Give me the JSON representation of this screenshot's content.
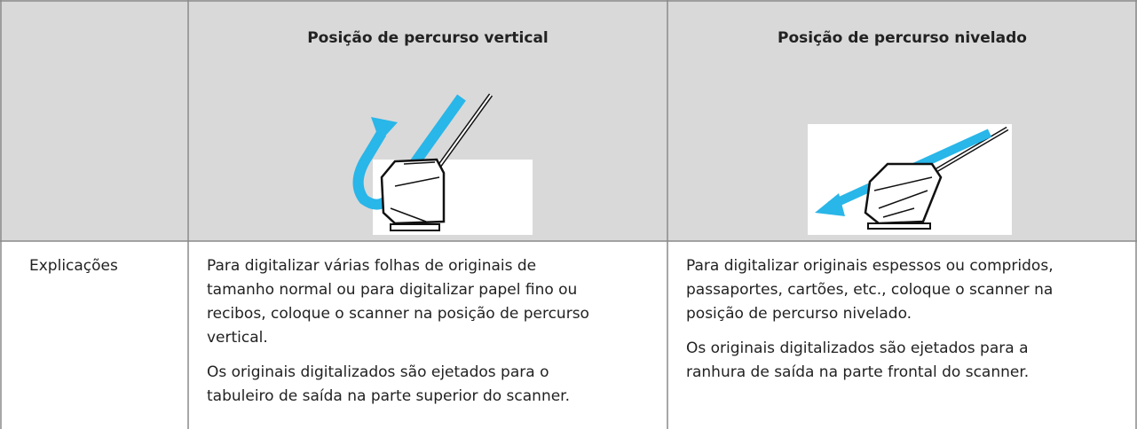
{
  "table": {
    "columns": [
      "Posição de percurso vertical",
      "Posição de percurso nivelado"
    ],
    "rows": [
      {
        "label": "Explicações",
        "cells": [
          [
            "Para digitalizar várias folhas de originais de tamanho normal ou para digitalizar papel fino ou recibos, coloque o scanner na posição de percurso vertical.",
            "Os originais digitalizados são ejetados para o tabuleiro de saída na parte superior do scanner."
          ],
          [
            "Para digitalizar originais espessos ou compridos, passaportes, cartões, etc., coloque o scanner na posição de percurso nivelado.",
            "Os originais digitalizados são ejetados para a ranhura de saída na parte frontal do scanner."
          ]
        ]
      }
    ]
  }
}
